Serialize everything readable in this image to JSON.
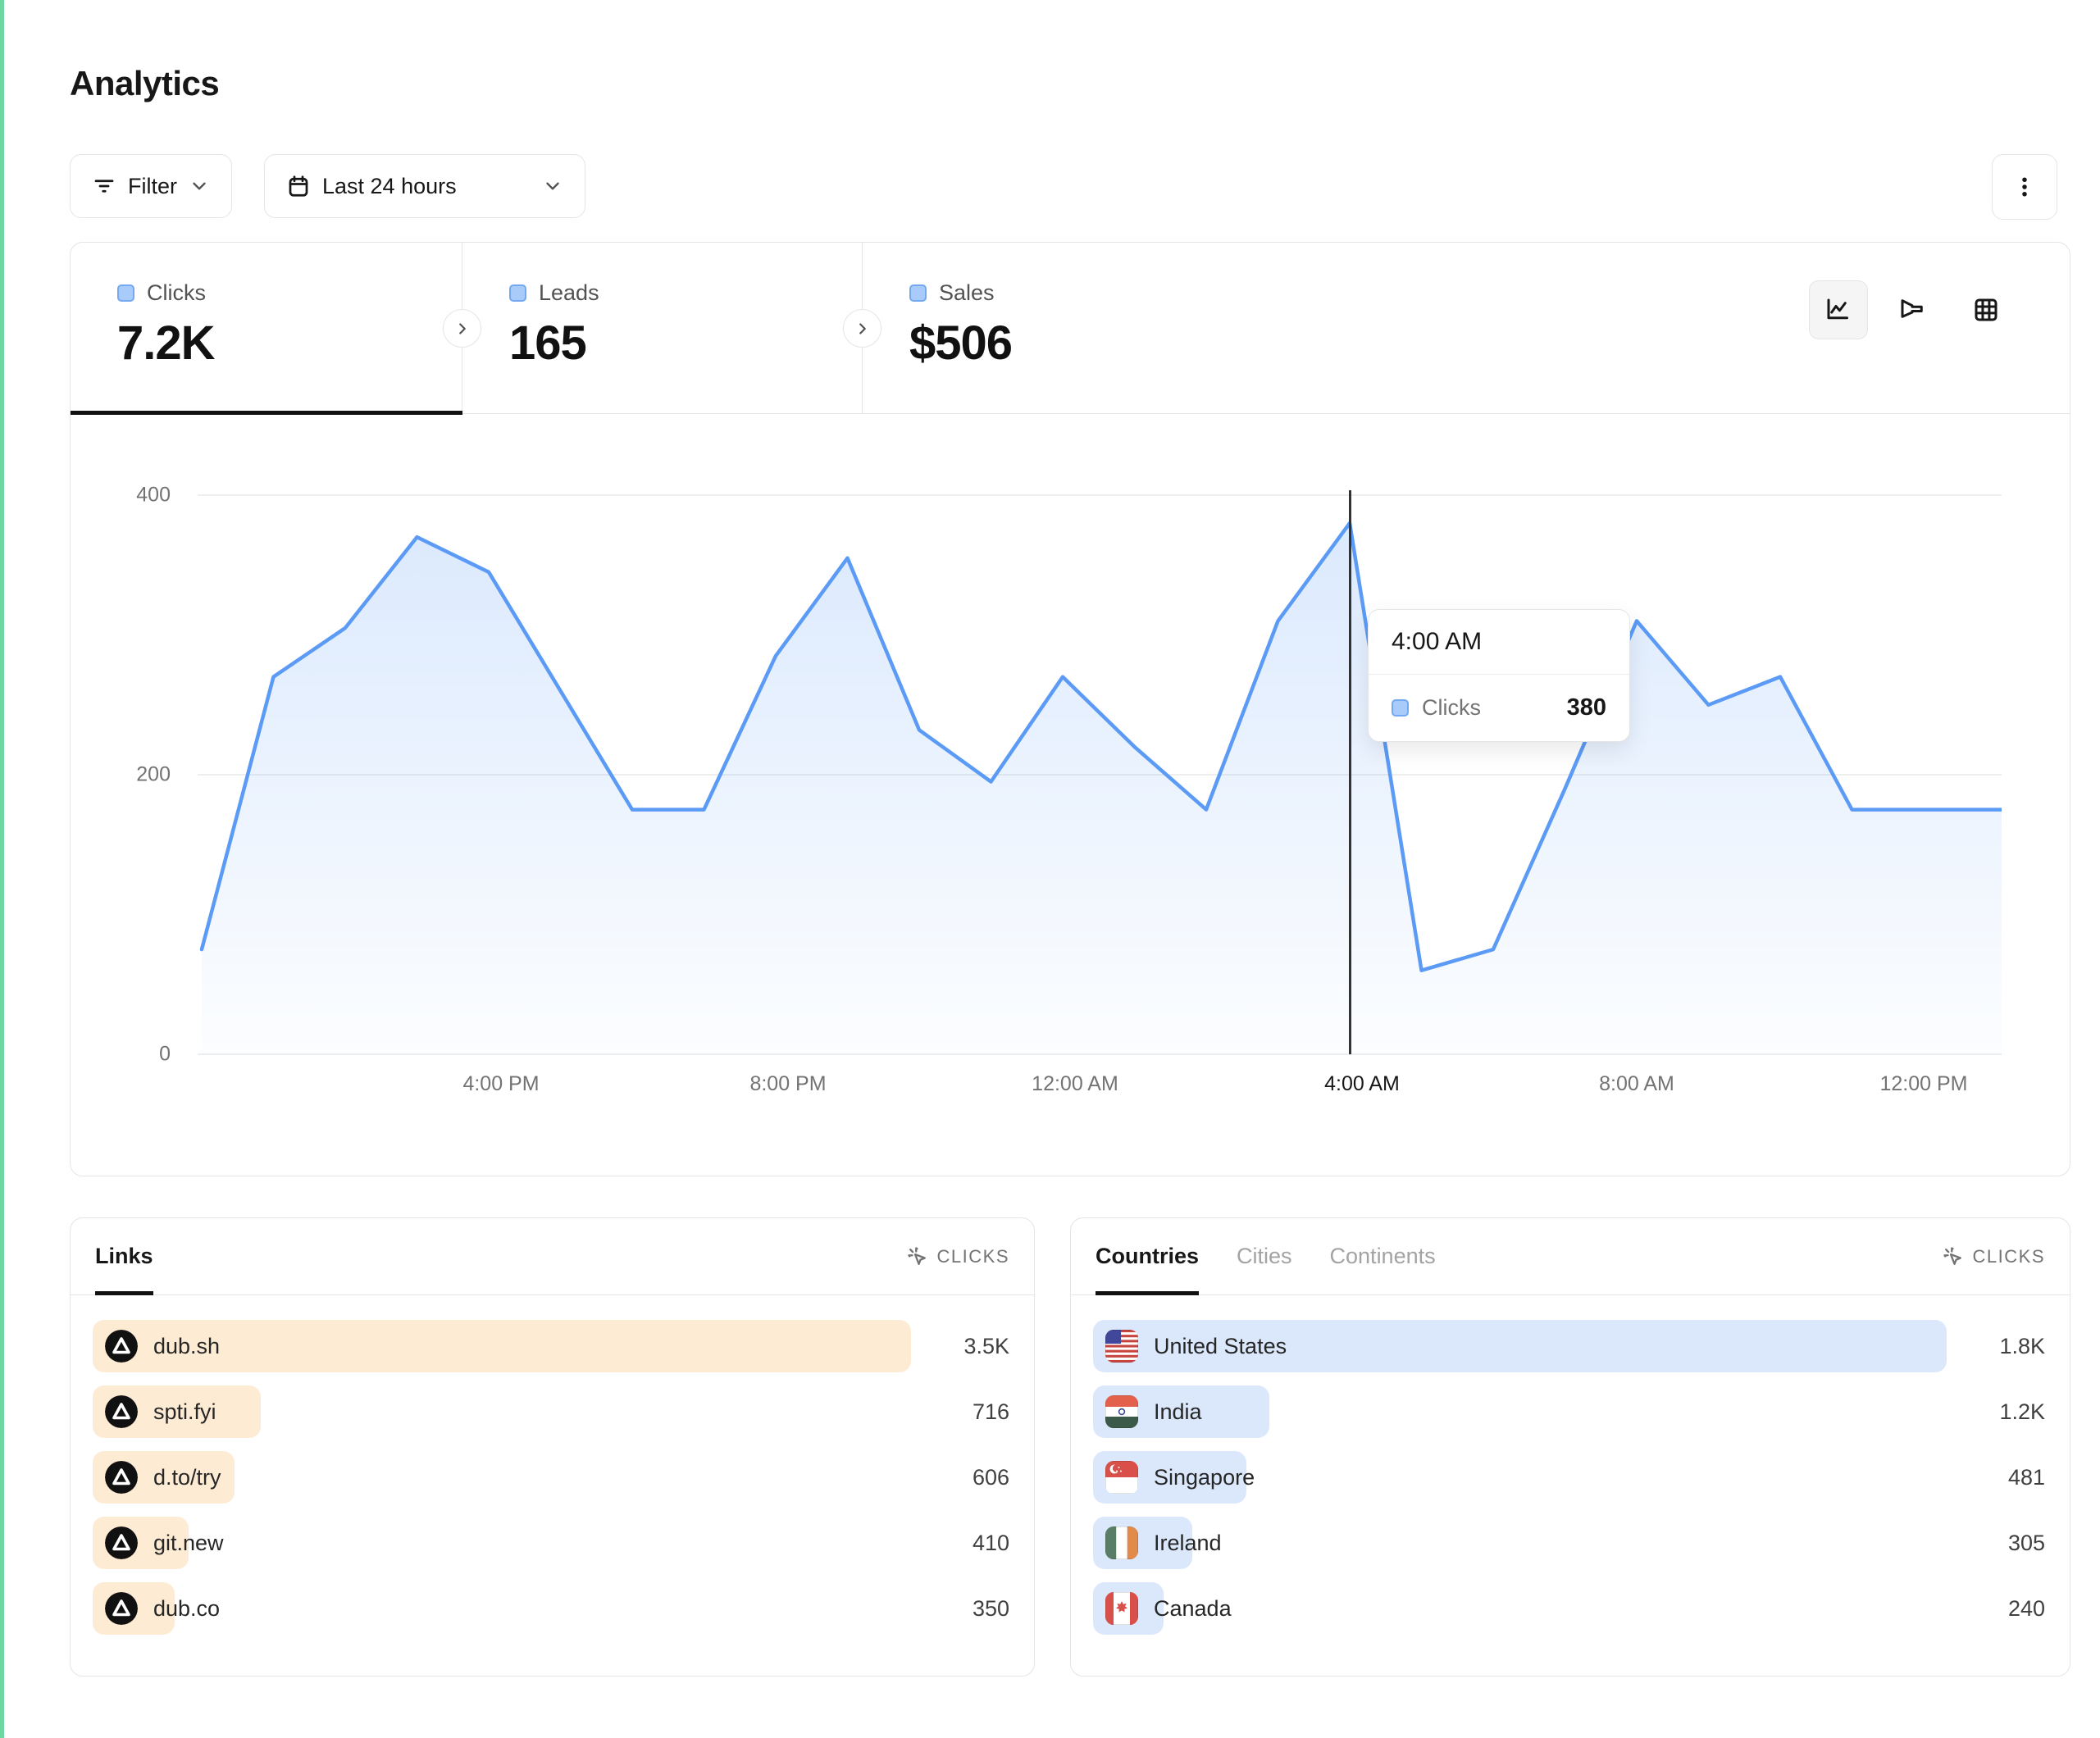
{
  "header": {
    "title": "Analytics"
  },
  "toolbar": {
    "filter_label": "Filter",
    "date_range_label": "Last 24 hours"
  },
  "stats": {
    "tabs": [
      {
        "label": "Clicks",
        "value": "7.2K",
        "active": true
      },
      {
        "label": "Leads",
        "value": "165",
        "active": false
      },
      {
        "label": "Sales",
        "value": "$506",
        "active": false
      }
    ]
  },
  "chart_data": {
    "type": "area",
    "series": [
      {
        "name": "Clicks",
        "values": [
          75,
          270,
          305,
          370,
          345,
          260,
          175,
          175,
          285,
          355,
          232,
          195,
          270,
          220,
          175,
          310,
          380,
          60,
          75,
          190,
          310,
          250,
          270,
          175,
          175
        ]
      }
    ],
    "x": [
      "12:00 PM",
      "1:00 PM",
      "2:00 PM",
      "3:00 PM",
      "4:00 PM",
      "5:00 PM",
      "6:00 PM",
      "7:00 PM",
      "8:00 PM",
      "9:00 PM",
      "10:00 PM",
      "11:00 PM",
      "12:00 AM",
      "1:00 AM",
      "2:00 AM",
      "3:00 AM",
      "4:00 AM",
      "5:00 AM",
      "6:00 AM",
      "7:00 AM",
      "8:00 AM",
      "9:00 AM",
      "10:00 AM",
      "11:00 AM",
      "12:00 PM"
    ],
    "ylim": [
      0,
      400
    ],
    "yticks": [
      400,
      200,
      0
    ],
    "xtick_labels": [
      "4:00 PM",
      "8:00 PM",
      "12:00 AM",
      "4:00 AM",
      "8:00 AM",
      "12:00 PM"
    ],
    "grid": "horizontal",
    "legend": "none",
    "highlight": {
      "x": "4:00 AM",
      "series": "Clicks",
      "value": 380
    }
  },
  "tooltip": {
    "title": "4:00 AM",
    "series_label": "Clicks",
    "value": "380"
  },
  "links_card": {
    "tab": "Links",
    "metric_label": "CLICKS",
    "rows": [
      {
        "label": "dub.sh",
        "value": "3.5K",
        "bar_pct": 100
      },
      {
        "label": "spti.fyi",
        "value": "716",
        "bar_pct": 20.5
      },
      {
        "label": "d.to/try",
        "value": "606",
        "bar_pct": 17.3
      },
      {
        "label": "git.new",
        "value": "410",
        "bar_pct": 11.7
      },
      {
        "label": "dub.co",
        "value": "350",
        "bar_pct": 10
      }
    ]
  },
  "countries_card": {
    "tabs": [
      "Countries",
      "Cities",
      "Continents"
    ],
    "active_tab": "Countries",
    "metric_label": "CLICKS",
    "rows": [
      {
        "label": "United States",
        "value": "1.8K",
        "bar_pct": 100,
        "flag": "us"
      },
      {
        "label": "India",
        "value": "1.2K",
        "bar_pct": 20.7,
        "flag": "in"
      },
      {
        "label": "Singapore",
        "value": "481",
        "bar_pct": 18,
        "flag": "sg"
      },
      {
        "label": "Ireland",
        "value": "305",
        "bar_pct": 11.6,
        "flag": "ie"
      },
      {
        "label": "Canada",
        "value": "240",
        "bar_pct": 8.3,
        "flag": "ca"
      }
    ]
  },
  "colors": {
    "line_blue": "#5b9bf6",
    "area_blue_top": "rgba(93,157,246,0.22)",
    "area_blue_bottom": "rgba(93,157,246,0.02)",
    "legend_fill": "#a9cbf9",
    "links_bar": "#fdebd3",
    "countries_bar": "#dbe8fc",
    "crosshair": "#333333"
  }
}
